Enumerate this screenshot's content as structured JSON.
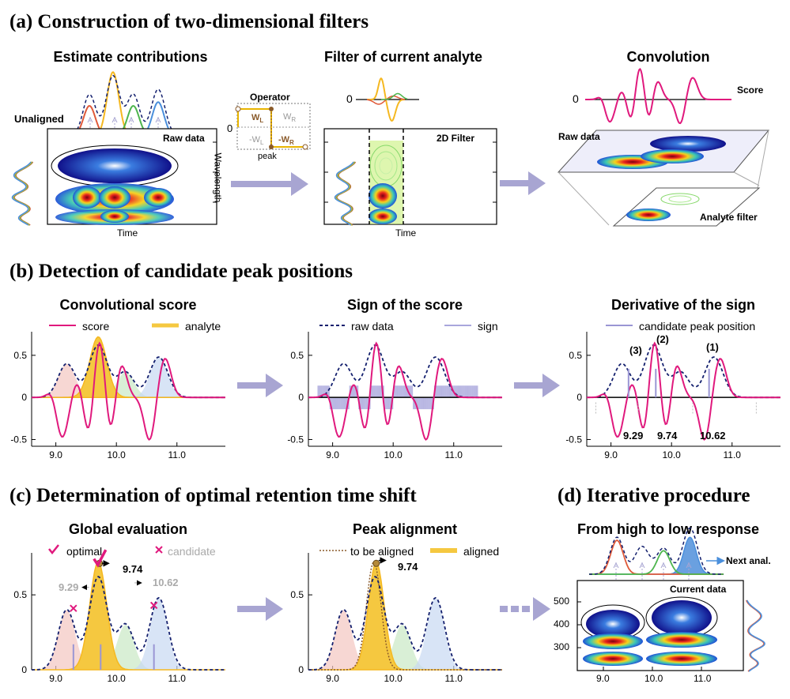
{
  "sections": {
    "a": "(a) Construction of two-dimensional filters",
    "b": "(b) Detection of candidate peak positions",
    "c": "(c) Determination of optimal retention time shift",
    "d": "(d) Iterative procedure"
  },
  "panel_a1": {
    "title": "Estimate contributions",
    "unaligned": "Unaligned",
    "raw_data": "Raw data",
    "x_label": "Time",
    "y_label": "Wavelength"
  },
  "operator": {
    "title": "Operator",
    "zero": "0",
    "wl": "W",
    "wl_sub": "L",
    "wr": "W",
    "wr_sub": "R",
    "nwl": "-W",
    "nwl_sub": "L",
    "nwr": "-W",
    "nwr_sub": "R",
    "peak": "peak"
  },
  "panel_a2": {
    "title": "Filter of current analyte",
    "zero": "0",
    "filter_label": "2D Filter",
    "x_label": "Time"
  },
  "panel_a3": {
    "title": "Convolution",
    "zero": "0",
    "score": "Score",
    "raw_data": "Raw data",
    "analyte_filter": "Analyte filter"
  },
  "panel_b1": {
    "title": "Convolutional score",
    "legend_score": "score",
    "legend_analyte": "analyte"
  },
  "panel_b2": {
    "title": "Sign of the score",
    "legend_raw": "raw data",
    "legend_sign": "sign"
  },
  "panel_b3": {
    "title": "Derivative of the sign",
    "legend_candidate": "candidate peak position",
    "peak_ids": [
      "(3)",
      "(2)",
      "(1)"
    ],
    "peak_times": [
      "9.29",
      "9.74",
      "10.62"
    ]
  },
  "panel_c1": {
    "title": "Global evaluation",
    "legend_optimal": "optimal",
    "legend_candidate": "candidate",
    "opt_time": "9.74",
    "cand_left": "9.29",
    "cand_right": "10.62"
  },
  "panel_c2": {
    "title": "Peak alignment",
    "legend_to_align": "to be aligned",
    "legend_aligned": "aligned",
    "opt_time": "9.74"
  },
  "panel_d": {
    "title": "From high to low response",
    "next": "Next anal.",
    "current": "Current data",
    "y_ticks": [
      "500",
      "400",
      "300"
    ],
    "x_ticks": [
      "9.0",
      "10.0",
      "11.0"
    ]
  },
  "axes": {
    "x_ticks": [
      "9.0",
      "10.0",
      "11.0"
    ],
    "y_ticks": [
      "0.5",
      "0",
      "-0.5"
    ]
  },
  "colors": {
    "score": "#e0197d",
    "analyte": "#f5b820",
    "raw": "#14206e",
    "sign": "#a9a6dc",
    "red": "#e05a3a",
    "green": "#4db54d",
    "blue": "#4a8fdc",
    "arrow": "#a8a5d2"
  }
}
